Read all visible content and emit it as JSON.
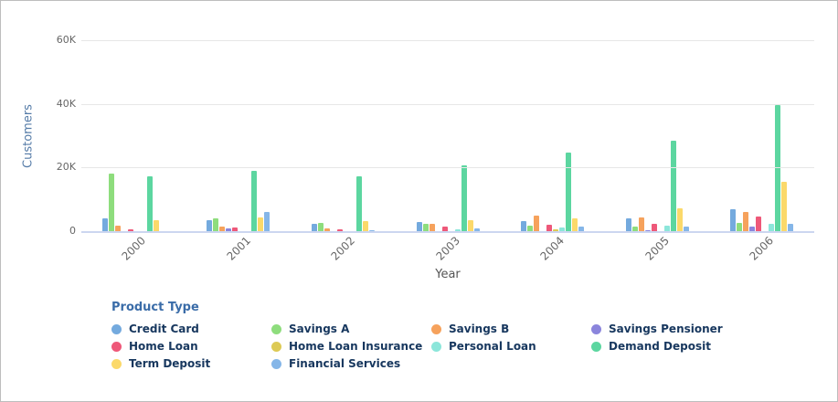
{
  "chart": {
    "y_axis": {
      "title": "Customers",
      "ticks": [
        {
          "label": "60K",
          "value": 60000
        },
        {
          "label": "40K",
          "value": 40000
        },
        {
          "label": "20K",
          "value": 20000
        },
        {
          "label": "0",
          "value": 0
        }
      ]
    },
    "x_axis": {
      "title": "Year"
    },
    "legend": {
      "title": "Product Type"
    }
  },
  "chart_data": {
    "type": "bar",
    "title": "",
    "xlabel": "Year",
    "ylabel": "Customers",
    "ylim": [
      0,
      60000
    ],
    "grid": true,
    "legend_position": "bottom",
    "categories": [
      "2000",
      "2001",
      "2002",
      "2003",
      "2004",
      "2005",
      "2006"
    ],
    "series": [
      {
        "name": "Credit Card",
        "color": "#74aade",
        "values": [
          4000,
          3500,
          2300,
          2900,
          3200,
          3900,
          7000
        ]
      },
      {
        "name": "Savings A",
        "color": "#8edd7d",
        "values": [
          18000,
          4100,
          2700,
          2300,
          1700,
          1500,
          2600
        ]
      },
      {
        "name": "Savings B",
        "color": "#f6a25c",
        "values": [
          1800,
          1500,
          900,
          2300,
          4900,
          4400,
          5900
        ]
      },
      {
        "name": "Savings Pensioner",
        "color": "#8b85dc",
        "values": [
          0,
          900,
          0,
          0,
          0,
          400,
          1300
        ]
      },
      {
        "name": "Home Loan",
        "color": "#ee5879",
        "values": [
          500,
          1200,
          700,
          1300,
          2100,
          2400,
          4600
        ]
      },
      {
        "name": "Home Loan Insurance",
        "color": "#ddca55",
        "values": [
          0,
          0,
          0,
          0,
          500,
          0,
          0
        ]
      },
      {
        "name": "Personal Loan",
        "color": "#8ce6da",
        "values": [
          0,
          0,
          0,
          600,
          1100,
          1600,
          2300
        ]
      },
      {
        "name": "Demand Deposit",
        "color": "#5cd6a0",
        "values": [
          17200,
          18900,
          17100,
          20800,
          24600,
          28400,
          39500
        ]
      },
      {
        "name": "Term Deposit",
        "color": "#fbd96a",
        "values": [
          3500,
          4300,
          3200,
          3400,
          4100,
          7200,
          15400
        ]
      },
      {
        "name": "Financial Services",
        "color": "#85b6e8",
        "values": [
          0,
          5900,
          400,
          800,
          1400,
          1400,
          2400
        ]
      }
    ]
  }
}
